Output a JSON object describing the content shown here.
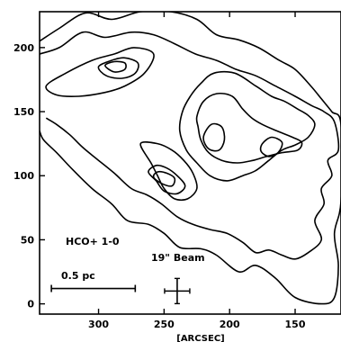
{
  "chart_data": {
    "type": "contour",
    "xlabel": "[ARCSEC]",
    "ylabel": "",
    "xlim": [
      345,
      115
    ],
    "ylim": [
      -8,
      228
    ],
    "x_reversed": true,
    "grid": false,
    "x_ticks": [
      300,
      250,
      200,
      150
    ],
    "y_ticks": [
      0,
      50,
      100,
      150,
      200
    ],
    "annotations": {
      "line_label": "HCO+  1-0",
      "scale_bar_label": "0.5 pc",
      "beam_label": "19\" Beam"
    },
    "beam": {
      "x": 240,
      "y": 10
    },
    "scale_bar": {
      "x_start": 336,
      "x_end": 272,
      "y": 12
    },
    "contours": [
      {
        "level": 1,
        "points": [
          [
            345,
            205
          ],
          [
            330,
            215
          ],
          [
            310,
            227
          ],
          [
            290,
            222
          ],
          [
            268,
            228
          ],
          [
            245,
            228
          ],
          [
            225,
            222
          ],
          [
            210,
            210
          ],
          [
            193,
            206
          ],
          [
            178,
            200
          ],
          [
            162,
            190
          ],
          [
            150,
            183
          ],
          [
            138,
            170
          ],
          [
            130,
            160
          ],
          [
            122,
            150
          ],
          [
            115,
            140
          ],
          [
            115,
            80
          ],
          [
            120,
            55
          ],
          [
            117,
            30
          ],
          [
            120,
            5
          ],
          [
            130,
            0
          ],
          [
            150,
            5
          ],
          [
            165,
            20
          ],
          [
            180,
            30
          ],
          [
            193,
            25
          ],
          [
            210,
            38
          ],
          [
            222,
            43
          ],
          [
            238,
            44
          ],
          [
            250,
            55
          ],
          [
            262,
            62
          ],
          [
            278,
            65
          ],
          [
            290,
            78
          ],
          [
            305,
            90
          ],
          [
            320,
            105
          ],
          [
            332,
            118
          ],
          [
            342,
            128
          ],
          [
            345,
            135
          ]
        ]
      },
      {
        "level": 2,
        "points": [
          [
            345,
            195
          ],
          [
            330,
            200
          ],
          [
            312,
            212
          ],
          [
            295,
            208
          ],
          [
            275,
            212
          ],
          [
            258,
            210
          ],
          [
            242,
            203
          ],
          [
            226,
            195
          ],
          [
            210,
            190
          ],
          [
            195,
            183
          ],
          [
            180,
            178
          ],
          [
            165,
            170
          ],
          [
            150,
            162
          ],
          [
            138,
            155
          ],
          [
            128,
            150
          ],
          [
            120,
            142
          ],
          [
            117,
            120
          ],
          [
            125,
            112
          ],
          [
            122,
            100
          ],
          [
            130,
            90
          ],
          [
            128,
            78
          ],
          [
            135,
            65
          ],
          [
            130,
            50
          ],
          [
            140,
            40
          ],
          [
            150,
            35
          ],
          [
            160,
            38
          ],
          [
            170,
            42
          ],
          [
            180,
            40
          ],
          [
            190,
            48
          ],
          [
            202,
            55
          ],
          [
            215,
            58
          ],
          [
            228,
            62
          ],
          [
            240,
            68
          ],
          [
            252,
            78
          ],
          [
            263,
            85
          ],
          [
            275,
            90
          ],
          [
            288,
            102
          ],
          [
            300,
            112
          ],
          [
            312,
            122
          ],
          [
            322,
            132
          ],
          [
            332,
            140
          ],
          [
            340,
            145
          ]
        ]
      },
      {
        "level": 3,
        "points": [
          [
            230,
            162
          ],
          [
            222,
            172
          ],
          [
            212,
            180
          ],
          [
            196,
            180
          ],
          [
            180,
            170
          ],
          [
            168,
            162
          ],
          [
            158,
            158
          ],
          [
            148,
            152
          ],
          [
            140,
            147
          ],
          [
            135,
            140
          ],
          [
            140,
            130
          ],
          [
            150,
            124
          ],
          [
            160,
            120
          ],
          [
            170,
            112
          ],
          [
            180,
            104
          ],
          [
            190,
            100
          ],
          [
            202,
            96
          ],
          [
            215,
            100
          ],
          [
            225,
            110
          ],
          [
            233,
            120
          ],
          [
            238,
            135
          ],
          [
            236,
            150
          ]
        ]
      },
      {
        "level": 3,
        "points": [
          [
            268,
            125
          ],
          [
            260,
            110
          ],
          [
            255,
            100
          ],
          [
            250,
            90
          ],
          [
            242,
            82
          ],
          [
            232,
            82
          ],
          [
            225,
            90
          ],
          [
            228,
            102
          ],
          [
            235,
            112
          ],
          [
            244,
            120
          ],
          [
            255,
            125
          ]
        ]
      },
      {
        "level": 3,
        "points": [
          [
            340,
            170
          ],
          [
            325,
            180
          ],
          [
            305,
            190
          ],
          [
            288,
            195
          ],
          [
            273,
            200
          ],
          [
            258,
            195
          ],
          [
            265,
            180
          ],
          [
            280,
            170
          ],
          [
            295,
            165
          ],
          [
            315,
            162
          ],
          [
            332,
            163
          ]
        ]
      },
      {
        "level": 4,
        "points": [
          [
            225,
            146
          ],
          [
            220,
            158
          ],
          [
            210,
            164
          ],
          [
            198,
            162
          ],
          [
            190,
            152
          ],
          [
            183,
            145
          ],
          [
            175,
            140
          ],
          [
            164,
            135
          ],
          [
            152,
            130
          ],
          [
            145,
            126
          ],
          [
            148,
            120
          ],
          [
            160,
            118
          ],
          [
            172,
            115
          ],
          [
            182,
            112
          ],
          [
            194,
            110
          ],
          [
            206,
            112
          ],
          [
            216,
            118
          ],
          [
            222,
            128
          ],
          [
            224,
            138
          ]
        ]
      },
      {
        "level": 4,
        "points": [
          [
            262,
            103
          ],
          [
            256,
            96
          ],
          [
            250,
            88
          ],
          [
            240,
            86
          ],
          [
            234,
            92
          ],
          [
            240,
            100
          ],
          [
            248,
            106
          ],
          [
            256,
            108
          ]
        ]
      },
      {
        "level": 4,
        "points": [
          [
            300,
            185
          ],
          [
            290,
            190
          ],
          [
            280,
            192
          ],
          [
            270,
            188
          ],
          [
            272,
            180
          ],
          [
            282,
            176
          ],
          [
            294,
            178
          ]
        ]
      },
      {
        "level": 4,
        "points": [
          [
            175,
            125
          ],
          [
            168,
            130
          ],
          [
            160,
            126
          ],
          [
            163,
            118
          ],
          [
            170,
            115
          ],
          [
            176,
            119
          ]
        ]
      },
      {
        "level": 5,
        "points": [
          [
            220,
            130
          ],
          [
            214,
            140
          ],
          [
            206,
            138
          ],
          [
            204,
            128
          ],
          [
            208,
            120
          ],
          [
            216,
            121
          ]
        ]
      },
      {
        "level": 5,
        "points": [
          [
            258,
            99
          ],
          [
            252,
            94
          ],
          [
            244,
            92
          ],
          [
            242,
            98
          ],
          [
            248,
            102
          ],
          [
            255,
            103
          ]
        ]
      },
      {
        "level": 5,
        "points": [
          [
            295,
            186
          ],
          [
            288,
            189
          ],
          [
            280,
            188
          ],
          [
            280,
            183
          ],
          [
            288,
            181
          ]
        ]
      }
    ]
  }
}
